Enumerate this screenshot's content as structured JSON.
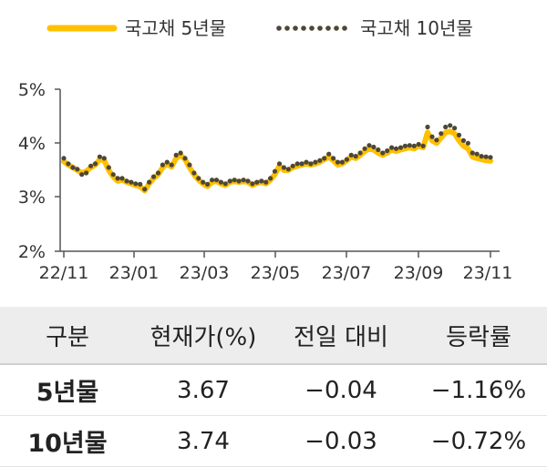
{
  "chart_data": {
    "type": "line",
    "legend": {
      "placement": "top"
    },
    "y_ticks": [
      "5%",
      "4%",
      "3%",
      "2%"
    ],
    "ylim": [
      2,
      5
    ],
    "x_ticks": [
      "22/11",
      "23/01",
      "23/03",
      "23/05",
      "23/07",
      "23/09",
      "23/11"
    ],
    "series": [
      {
        "name": "국고채 5년물",
        "color": "#FFC000",
        "style": "solid",
        "values": [
          3.66,
          3.6,
          3.55,
          3.5,
          3.45,
          3.48,
          3.55,
          3.6,
          3.7,
          3.68,
          3.5,
          3.38,
          3.3,
          3.32,
          3.28,
          3.25,
          3.22,
          3.2,
          3.12,
          3.25,
          3.35,
          3.42,
          3.55,
          3.62,
          3.56,
          3.72,
          3.78,
          3.7,
          3.55,
          3.42,
          3.32,
          3.25,
          3.2,
          3.28,
          3.3,
          3.25,
          3.22,
          3.28,
          3.3,
          3.28,
          3.3,
          3.28,
          3.22,
          3.26,
          3.28,
          3.25,
          3.32,
          3.42,
          3.58,
          3.5,
          3.5,
          3.55,
          3.58,
          3.6,
          3.62,
          3.6,
          3.62,
          3.65,
          3.7,
          3.75,
          3.68,
          3.6,
          3.62,
          3.68,
          3.75,
          3.72,
          3.78,
          3.85,
          3.9,
          3.88,
          3.82,
          3.78,
          3.82,
          3.88,
          3.85,
          3.88,
          3.9,
          3.92,
          3.9,
          3.95,
          3.92,
          4.2,
          4.05,
          4.0,
          4.1,
          4.2,
          4.22,
          4.18,
          4.05,
          3.95,
          3.9,
          3.75,
          3.72,
          3.7,
          3.68,
          3.67
        ]
      },
      {
        "name": "국고채 10년물",
        "color": "#4D4738",
        "style": "dotted",
        "values": [
          3.72,
          3.62,
          3.55,
          3.52,
          3.42,
          3.45,
          3.58,
          3.62,
          3.75,
          3.72,
          3.55,
          3.42,
          3.35,
          3.35,
          3.3,
          3.28,
          3.25,
          3.24,
          3.15,
          3.28,
          3.38,
          3.45,
          3.6,
          3.65,
          3.6,
          3.78,
          3.82,
          3.72,
          3.6,
          3.45,
          3.35,
          3.28,
          3.24,
          3.32,
          3.32,
          3.28,
          3.25,
          3.3,
          3.32,
          3.3,
          3.32,
          3.3,
          3.25,
          3.28,
          3.3,
          3.28,
          3.35,
          3.48,
          3.62,
          3.55,
          3.52,
          3.58,
          3.62,
          3.62,
          3.65,
          3.62,
          3.65,
          3.68,
          3.72,
          3.8,
          3.72,
          3.65,
          3.65,
          3.7,
          3.78,
          3.76,
          3.82,
          3.9,
          3.96,
          3.93,
          3.88,
          3.82,
          3.86,
          3.92,
          3.9,
          3.92,
          3.95,
          3.96,
          3.95,
          3.98,
          3.95,
          4.3,
          4.12,
          4.06,
          4.18,
          4.3,
          4.33,
          4.28,
          4.15,
          4.05,
          4.0,
          3.82,
          3.8,
          3.76,
          3.75,
          3.74
        ]
      }
    ]
  },
  "table": {
    "headers": [
      "구분",
      "현재가(%)",
      "전일 대비",
      "등락률"
    ],
    "rows": [
      {
        "label": "5년물",
        "current": "3.67",
        "change": "−0.04",
        "rate": "−1.16%"
      },
      {
        "label": "10년물",
        "current": "3.74",
        "change": "−0.03",
        "rate": "−0.72%"
      }
    ]
  }
}
